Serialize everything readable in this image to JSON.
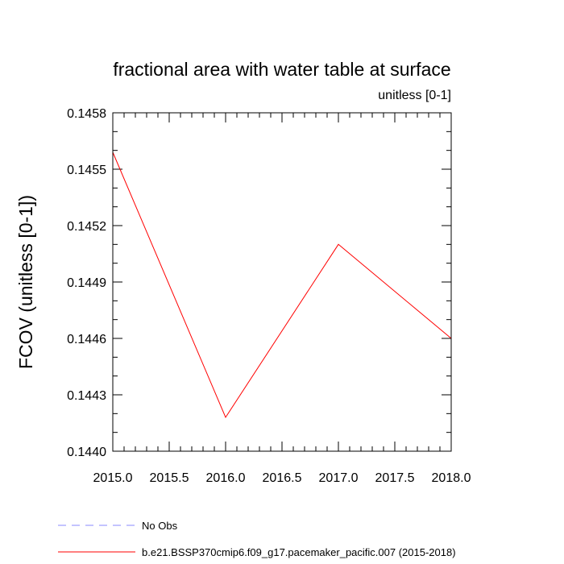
{
  "chart_data": {
    "type": "line",
    "title": "fractional area with water table at surface",
    "subtitle": "unitless [0-1]",
    "xlabel": "",
    "ylabel": "FCOV  (unitless [0-1])",
    "xlim": [
      2015.0,
      2018.0
    ],
    "ylim": [
      0.144,
      0.1458
    ],
    "x_ticks": [
      "2015.0",
      "2015.5",
      "2016.0",
      "2016.5",
      "2017.0",
      "2017.5",
      "2018.0"
    ],
    "y_ticks": [
      "0.1440",
      "0.1443",
      "0.1446",
      "0.1449",
      "0.1452",
      "0.1455",
      "0.1458"
    ],
    "grid": false,
    "legend_position": "bottom-left",
    "series": [
      {
        "name": "b.e21.BSSP370cmip6.f09_g17.pacemaker_pacific.007 (2015-2018)",
        "color": "#ff0000",
        "dash": "solid",
        "x": [
          2015.0,
          2016.0,
          2017.0,
          2018.0
        ],
        "y": [
          0.14559,
          0.14418,
          0.1451,
          0.1446
        ]
      }
    ],
    "legend": [
      {
        "label": "No Obs",
        "color": "#8a8aff",
        "dash": "dashed"
      },
      {
        "label": "b.e21.BSSP370cmip6.f09_g17.pacemaker_pacific.007 (2015-2018)",
        "color": "#ff0000",
        "dash": "solid"
      }
    ]
  }
}
